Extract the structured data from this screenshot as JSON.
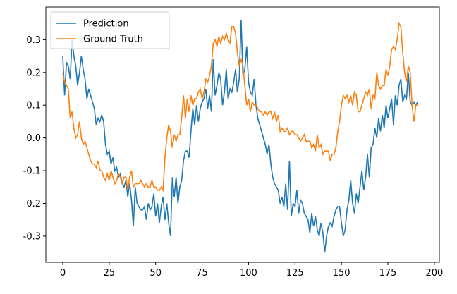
{
  "chart_data": {
    "type": "line",
    "x": [
      0,
      1,
      2,
      3,
      4,
      5,
      6,
      7,
      8,
      9,
      10,
      11,
      12,
      13,
      14,
      15,
      16,
      17,
      18,
      19,
      20,
      21,
      22,
      23,
      24,
      25,
      26,
      27,
      28,
      29,
      30,
      31,
      32,
      33,
      34,
      35,
      36,
      37,
      38,
      39,
      40,
      41,
      42,
      43,
      44,
      45,
      46,
      47,
      48,
      49,
      50,
      51,
      52,
      53,
      54,
      55,
      56,
      57,
      58,
      59,
      60,
      61,
      62,
      63,
      64,
      65,
      66,
      67,
      68,
      69,
      70,
      71,
      72,
      73,
      74,
      75,
      76,
      77,
      78,
      79,
      80,
      81,
      82,
      83,
      84,
      85,
      86,
      87,
      88,
      89,
      90,
      91,
      92,
      93,
      94,
      95,
      96,
      97,
      98,
      99,
      100,
      101,
      102,
      103,
      104,
      105,
      106,
      107,
      108,
      109,
      110,
      111,
      112,
      113,
      114,
      115,
      116,
      117,
      118,
      119,
      120,
      121,
      122,
      123,
      124,
      125,
      126,
      127,
      128,
      129,
      130,
      131,
      132,
      133,
      134,
      135,
      136,
      137,
      138,
      139,
      140,
      141,
      142,
      143,
      144,
      145,
      146,
      147,
      148,
      149,
      150,
      151,
      152,
      153,
      154,
      155,
      156,
      157,
      158,
      159,
      160,
      161,
      162,
      163,
      164,
      165,
      166,
      167,
      168,
      169,
      170,
      171,
      172,
      173,
      174,
      175,
      176,
      177,
      178,
      179,
      180,
      181,
      182,
      183,
      184,
      185,
      186,
      187,
      188,
      189,
      190,
      191
    ],
    "series": [
      {
        "name": "Prediction",
        "color": "#1f77b4",
        "values": [
          0.25,
          0.13,
          0.23,
          0.22,
          0.18,
          0.3,
          0.25,
          0.22,
          0.16,
          0.2,
          0.25,
          0.21,
          0.18,
          0.12,
          0.15,
          0.13,
          0.11,
          0.09,
          0.04,
          0.06,
          0.05,
          0.07,
          0.05,
          -0.02,
          -0.05,
          -0.04,
          -0.08,
          -0.06,
          -0.1,
          -0.09,
          -0.12,
          -0.11,
          -0.14,
          -0.15,
          -0.13,
          -0.18,
          -0.14,
          -0.19,
          -0.27,
          -0.15,
          -0.2,
          -0.21,
          -0.22,
          -0.22,
          -0.21,
          -0.25,
          -0.2,
          -0.22,
          -0.21,
          -0.17,
          -0.24,
          -0.2,
          -0.26,
          -0.21,
          -0.18,
          -0.25,
          -0.2,
          -0.26,
          -0.3,
          -0.12,
          -0.18,
          -0.12,
          -0.2,
          -0.15,
          -0.13,
          -0.07,
          -0.04,
          -0.04,
          -0.06,
          0.02,
          0.09,
          0.04,
          0.1,
          0.05,
          0.09,
          0.11,
          0.12,
          0.15,
          0.09,
          0.13,
          0.08,
          0.24,
          0.13,
          0.16,
          0.2,
          0.18,
          0.1,
          0.14,
          0.21,
          0.12,
          0.15,
          0.14,
          0.17,
          0.21,
          0.14,
          0.18,
          0.36,
          0.19,
          0.21,
          0.28,
          0.17,
          0.14,
          0.13,
          0.18,
          0.1,
          0.06,
          0.04,
          0.02,
          0.0,
          -0.02,
          -0.05,
          -0.02,
          -0.08,
          -0.12,
          -0.14,
          -0.15,
          -0.16,
          -0.2,
          -0.18,
          -0.21,
          -0.14,
          -0.22,
          -0.07,
          -0.24,
          -0.2,
          -0.21,
          -0.16,
          -0.23,
          -0.19,
          -0.2,
          -0.23,
          -0.24,
          -0.25,
          -0.29,
          -0.23,
          -0.27,
          -0.24,
          -0.28,
          -0.3,
          -0.26,
          -0.29,
          -0.35,
          -0.3,
          -0.27,
          -0.26,
          -0.27,
          -0.24,
          -0.22,
          -0.21,
          -0.21,
          -0.26,
          -0.3,
          -0.28,
          -0.22,
          -0.19,
          -0.13,
          -0.2,
          -0.23,
          -0.17,
          -0.2,
          -0.15,
          -0.1,
          -0.16,
          -0.12,
          -0.05,
          -0.12,
          -0.03,
          -0.02,
          0.03,
          0.0,
          0.06,
          0.02,
          0.07,
          0.03,
          0.1,
          0.06,
          0.09,
          0.12,
          0.04,
          0.13,
          0.1,
          0.16,
          0.18,
          0.11,
          0.13,
          0.12,
          0.2,
          0.11,
          0.1,
          0.11,
          0.1,
          0.11
        ]
      },
      {
        "name": "Ground Truth",
        "color": "#ff7f0e",
        "values": [
          0.2,
          0.17,
          0.16,
          0.15,
          0.06,
          0.08,
          0.03,
          0.0,
          0.01,
          0.05,
          0.0,
          -0.02,
          -0.01,
          -0.03,
          -0.05,
          -0.07,
          -0.08,
          -0.08,
          -0.09,
          -0.07,
          -0.1,
          -0.1,
          -0.12,
          -0.13,
          -0.11,
          -0.13,
          -0.1,
          -0.12,
          -0.14,
          -0.13,
          -0.11,
          -0.12,
          -0.14,
          -0.12,
          -0.12,
          -0.16,
          -0.12,
          -0.1,
          -0.15,
          -0.14,
          -0.14,
          -0.14,
          -0.13,
          -0.14,
          -0.15,
          -0.14,
          -0.15,
          -0.15,
          -0.13,
          -0.15,
          -0.15,
          -0.16,
          -0.16,
          -0.15,
          -0.16,
          -0.06,
          0.0,
          0.04,
          0.02,
          -0.03,
          0.01,
          -0.01,
          0.01,
          0.01,
          0.06,
          0.13,
          0.06,
          0.12,
          0.08,
          0.13,
          0.1,
          0.12,
          0.12,
          0.14,
          0.15,
          0.12,
          0.14,
          0.18,
          0.17,
          0.19,
          0.22,
          0.29,
          0.3,
          0.28,
          0.31,
          0.29,
          0.31,
          0.3,
          0.32,
          0.3,
          0.29,
          0.34,
          0.34,
          0.32,
          0.26,
          0.22,
          0.24,
          0.22,
          0.16,
          0.1,
          0.12,
          0.08,
          0.11,
          0.1,
          0.1,
          0.09,
          0.08,
          0.08,
          0.07,
          0.08,
          0.07,
          0.08,
          0.08,
          0.06,
          0.08,
          0.05,
          0.07,
          0.02,
          0.03,
          0.02,
          0.02,
          0.03,
          0.01,
          0.02,
          0.02,
          0.01,
          0.01,
          0.0,
          -0.01,
          0.0,
          0.01,
          -0.01,
          -0.01,
          -0.01,
          -0.03,
          -0.02,
          -0.04,
          0.01,
          -0.03,
          -0.02,
          -0.05,
          -0.04,
          -0.04,
          -0.04,
          -0.07,
          -0.05,
          -0.05,
          -0.03,
          0.02,
          0.05,
          0.1,
          0.13,
          0.12,
          0.13,
          0.11,
          0.13,
          0.1,
          0.14,
          0.13,
          0.08,
          0.08,
          0.1,
          0.12,
          0.14,
          0.13,
          0.15,
          0.09,
          0.13,
          0.12,
          0.2,
          0.16,
          0.15,
          0.16,
          0.16,
          0.21,
          0.19,
          0.22,
          0.27,
          0.28,
          0.27,
          0.3,
          0.35,
          0.34,
          0.26,
          0.2,
          0.17,
          0.22,
          0.2,
          0.1,
          0.05,
          0.1,
          0.1
        ]
      }
    ],
    "xlim": [
      -9.1,
      202.7
    ],
    "xticks": [
      0,
      25,
      50,
      75,
      100,
      125,
      150,
      175,
      200
    ],
    "ylim": [
      -0.38,
      0.4
    ],
    "yticks": [
      -0.3,
      -0.2,
      -0.1,
      {
        "value": 0,
        "label": "0.0"
      },
      0.1,
      0.2,
      0.3
    ],
    "legend": "upper left"
  }
}
